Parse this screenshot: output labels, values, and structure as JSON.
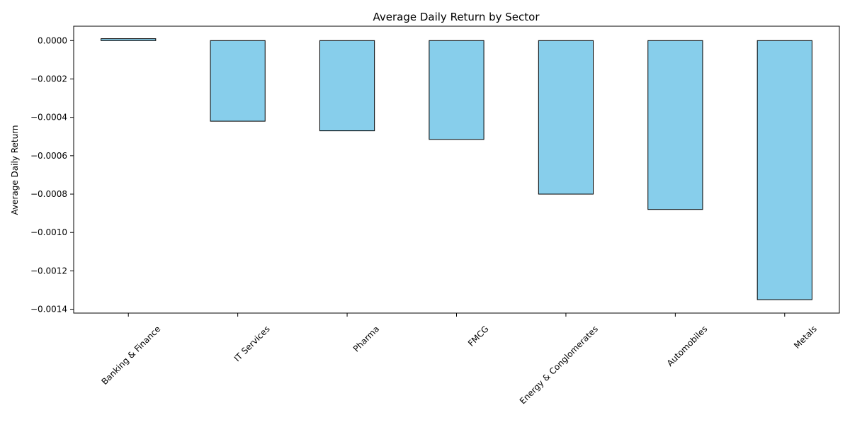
{
  "chart_data": {
    "type": "bar",
    "title": "Average Daily Return by Sector",
    "xlabel": "",
    "ylabel": "Average Daily Return",
    "categories": [
      "Banking & Finance",
      "IT Services",
      "Pharma",
      "FMCG",
      "Energy & Conglomerates",
      "Automobiles",
      "Metals"
    ],
    "values": [
      1e-05,
      -0.00042,
      -0.00047,
      -0.000515,
      -0.0008,
      -0.00088,
      -0.00135
    ],
    "ylim": [
      -0.00142,
      7.5e-05
    ],
    "yticks": [
      0.0,
      -0.0002,
      -0.0004,
      -0.0006,
      -0.0008,
      -0.001,
      -0.0012,
      -0.0014
    ],
    "ytick_labels": [
      "0.0000",
      "−0.0002",
      "−0.0004",
      "−0.0006",
      "−0.0008",
      "−0.0010",
      "−0.0012",
      "−0.0014"
    ],
    "grid": false,
    "legend": "none",
    "colors": {
      "bar_fill": "#87ceeb",
      "bar_edge": "#000000",
      "axis": "#000000"
    }
  }
}
